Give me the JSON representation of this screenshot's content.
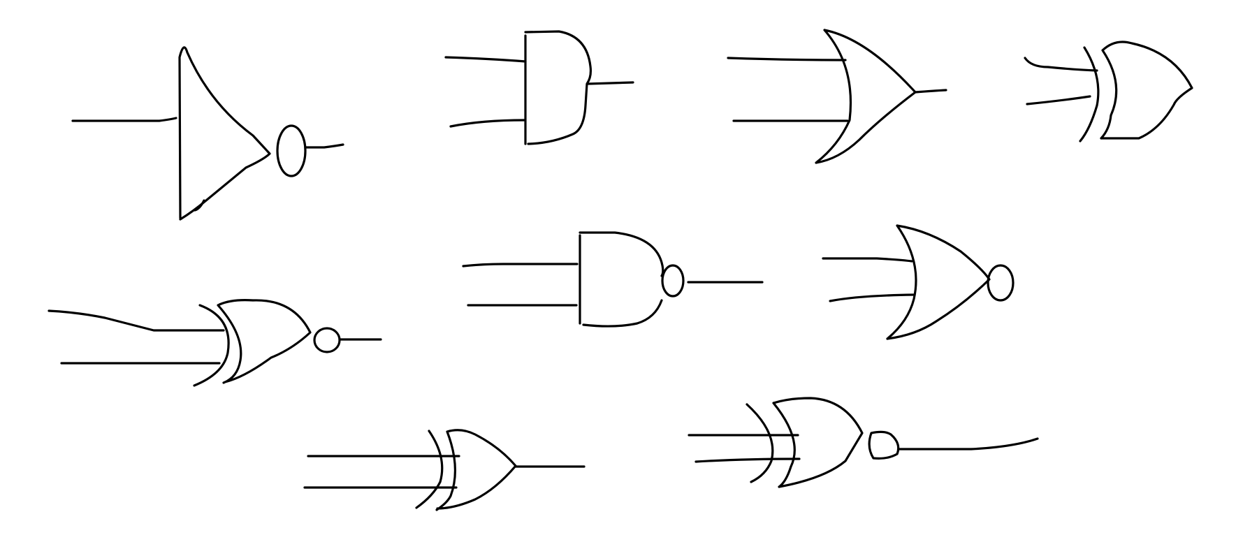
{
  "canvas": {
    "background": "#ffffff",
    "stroke_color": "#000000"
  },
  "gates": [
    {
      "id": "not-gate",
      "kind": "NOT",
      "inputs": 1
    },
    {
      "id": "and-gate",
      "kind": "AND",
      "inputs": 2
    },
    {
      "id": "or-gate",
      "kind": "OR",
      "inputs": 2
    },
    {
      "id": "xor-gate-top",
      "kind": "XOR",
      "inputs": 2
    },
    {
      "id": "xnor-gate-left",
      "kind": "XNOR",
      "inputs": 2
    },
    {
      "id": "nand-gate",
      "kind": "NAND",
      "inputs": 2
    },
    {
      "id": "nor-gate",
      "kind": "NOR",
      "inputs": 2
    },
    {
      "id": "xor-gate-bottom",
      "kind": "XOR",
      "inputs": 2
    },
    {
      "id": "xnor-gate-bottom",
      "kind": "XNOR",
      "inputs": 2
    }
  ]
}
